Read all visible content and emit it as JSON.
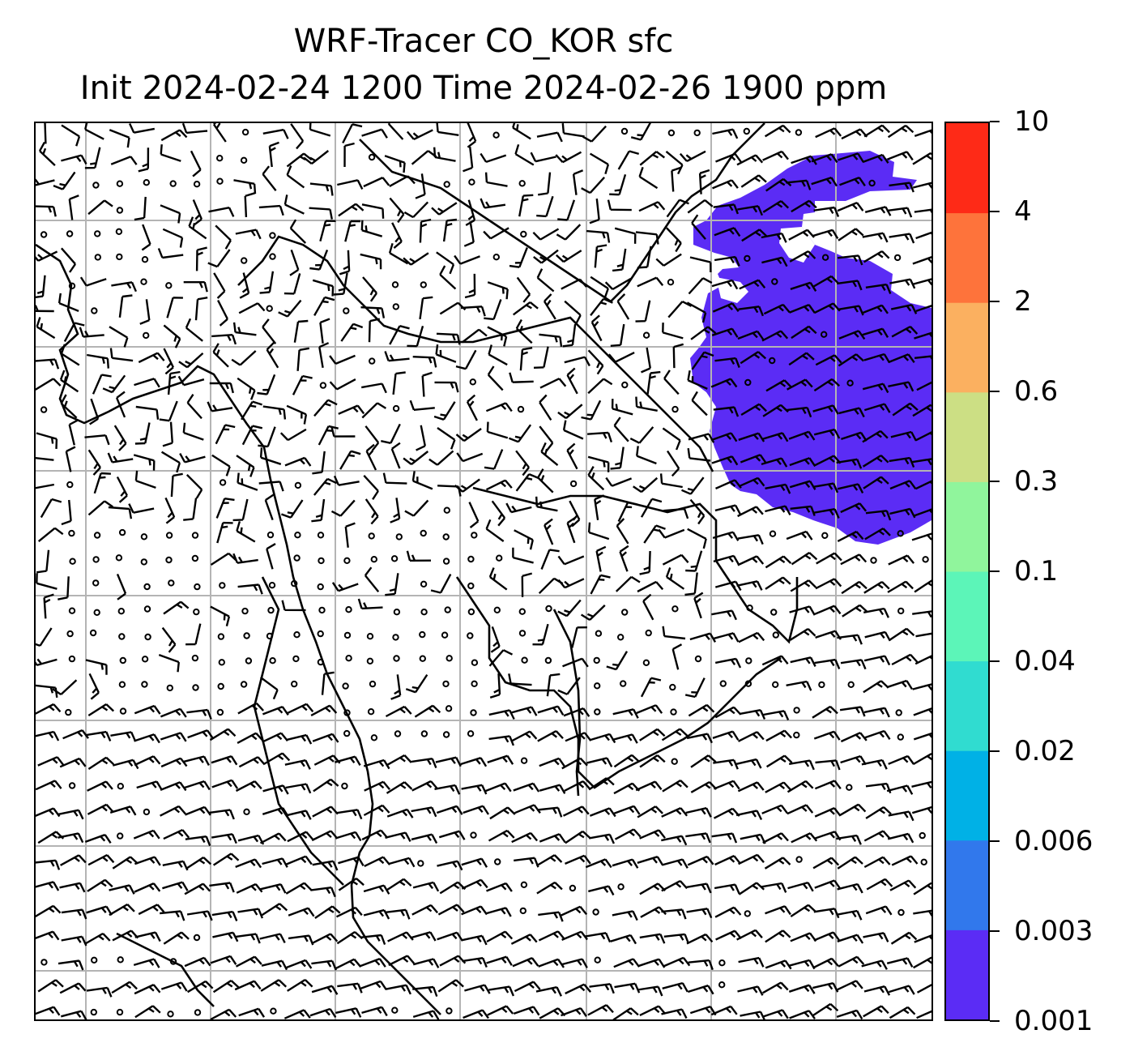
{
  "title": {
    "line1": "WRF-Tracer CO_KOR sfc",
    "line2": "Init 2024-02-24 1200 Time 2024-02-26 1900 ppm"
  },
  "colorbar": {
    "levels": [
      "0.001",
      "0.003",
      "0.006",
      "0.02",
      "0.04",
      "0.1",
      "0.3",
      "0.6",
      "2",
      "4",
      "10"
    ],
    "colors": [
      "#5b2cf5",
      "#3178ec",
      "#00b1e6",
      "#30dcd0",
      "#5cf5b8",
      "#90f59c",
      "#ccdf84",
      "#fbb060",
      "#fe733b",
      "#fe2a17"
    ]
  },
  "map": {
    "field": "CO_KOR surface tracer concentration (ppm) with wind barbs",
    "plume_color": "#5b2cf5",
    "gridline_color": "#b4b4b4"
  }
}
